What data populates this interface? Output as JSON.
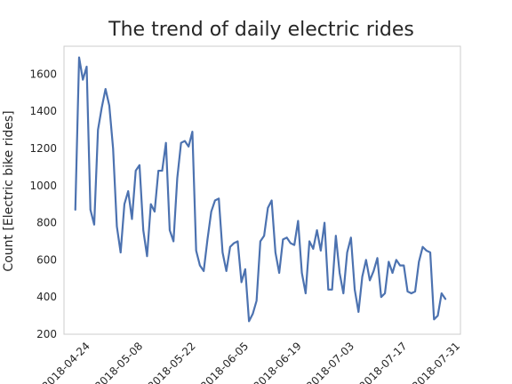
{
  "chart_data": {
    "type": "line",
    "title": "The trend of daily electric rides",
    "xlabel": "",
    "ylabel": "Count [Electric bike rides]",
    "x_start": "2018-04-20",
    "x_end": "2018-07-31",
    "xlim": [
      "2018-04-17",
      "2018-07-31"
    ],
    "ylim": [
      200,
      1750
    ],
    "x_ticks": [
      "2018-04-24",
      "2018-05-08",
      "2018-05-22",
      "2018-06-05",
      "2018-06-19",
      "2018-07-03",
      "2018-07-17",
      "2018-07-31"
    ],
    "y_ticks": [
      200,
      400,
      600,
      800,
      1000,
      1200,
      1400,
      1600
    ],
    "grid": false,
    "series": [
      {
        "color": "#4c72b0",
        "values": [
          870,
          1690,
          1570,
          1640,
          870,
          790,
          1300,
          1420,
          1520,
          1430,
          1200,
          780,
          640,
          900,
          970,
          820,
          1080,
          1110,
          760,
          620,
          900,
          860,
          1080,
          1080,
          1230,
          760,
          700,
          1040,
          1230,
          1240,
          1210,
          1290,
          650,
          570,
          540,
          710,
          860,
          920,
          930,
          640,
          540,
          670,
          690,
          700,
          480,
          550,
          270,
          310,
          380,
          700,
          730,
          880,
          920,
          640,
          530,
          710,
          720,
          690,
          680,
          810,
          530,
          420,
          700,
          660,
          760,
          650,
          800,
          440,
          440,
          730,
          530,
          420,
          640,
          720,
          440,
          320,
          510,
          600,
          490,
          540,
          610,
          400,
          420,
          590,
          530,
          600,
          570,
          570,
          430,
          420,
          430,
          590,
          670,
          650,
          640,
          280,
          300,
          420,
          390
        ]
      }
    ]
  }
}
